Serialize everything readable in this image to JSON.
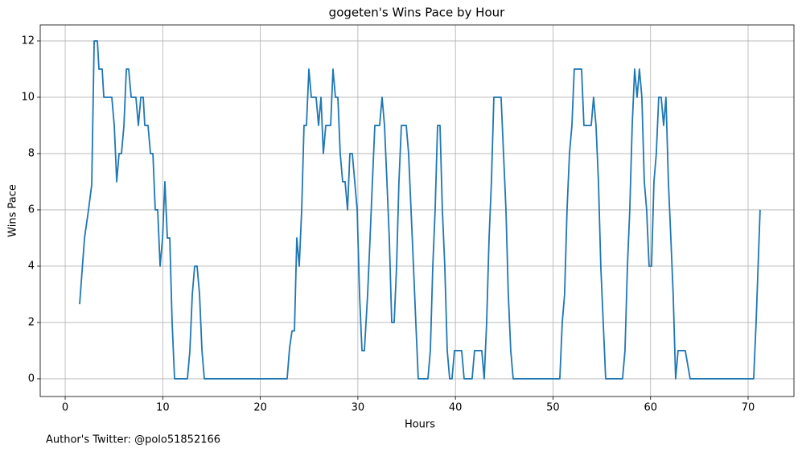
{
  "chart_data": {
    "type": "line",
    "title": "gogeten's Wins Pace by Hour",
    "xlabel": "Hours",
    "ylabel": "Wins Pace",
    "footer": "Author's Twitter: @polo51852166",
    "grid": true,
    "xlim": [
      -2.56,
      74.7
    ],
    "ylim": [
      -0.63,
      12.57
    ],
    "xticks": [
      0,
      10,
      20,
      30,
      40,
      50,
      60,
      70
    ],
    "yticks": [
      0,
      2,
      4,
      6,
      8,
      10,
      12
    ],
    "series": [
      {
        "name": "Wins Pace",
        "color": "#1f77b4",
        "x": [
          1.48,
          1.98,
          2.39,
          2.72,
          2.97,
          3.3,
          3.46,
          3.79,
          3.96,
          4.78,
          5.03,
          5.28,
          5.52,
          5.77,
          6.02,
          6.27,
          6.51,
          6.76,
          7.25,
          7.5,
          7.75,
          8.0,
          8.16,
          8.49,
          8.74,
          8.99,
          9.23,
          9.48,
          9.73,
          9.98,
          10.22,
          10.47,
          10.72,
          10.96,
          11.21,
          12.53,
          12.78,
          13.03,
          13.27,
          13.52,
          13.77,
          14.02,
          14.26,
          22.75,
          23.0,
          23.25,
          23.5,
          23.74,
          23.99,
          24.24,
          24.48,
          24.73,
          24.98,
          25.23,
          25.72,
          25.97,
          26.22,
          26.46,
          26.71,
          27.21,
          27.45,
          27.7,
          27.95,
          28.19,
          28.44,
          28.69,
          28.94,
          29.18,
          29.43,
          29.93,
          30.17,
          30.42,
          30.67,
          31.0,
          31.25,
          31.49,
          31.74,
          32.23,
          32.48,
          32.73,
          32.98,
          33.22,
          33.47,
          33.72,
          33.97,
          34.21,
          34.46,
          34.96,
          35.2,
          35.45,
          35.7,
          35.94,
          36.19,
          37.18,
          37.43,
          37.68,
          37.92,
          38.17,
          38.42,
          38.66,
          38.91,
          39.16,
          39.41,
          39.65,
          39.9,
          40.64,
          40.89,
          41.71,
          41.96,
          42.7,
          42.95,
          43.2,
          43.45,
          43.69,
          43.94,
          44.68,
          44.93,
          45.18,
          45.42,
          45.67,
          45.92,
          50.7,
          50.95,
          51.19,
          51.44,
          51.69,
          51.94,
          52.18,
          52.93,
          53.17,
          53.92,
          54.16,
          54.41,
          54.66,
          54.9,
          55.15,
          55.4,
          57.13,
          57.38,
          57.63,
          57.87,
          58.12,
          58.37,
          58.62,
          58.86,
          59.11,
          59.36,
          59.6,
          59.85,
          60.1,
          60.35,
          60.59,
          60.84,
          61.09,
          61.34,
          61.58,
          61.83,
          62.08,
          62.32,
          62.57,
          62.82,
          63.56,
          64.06,
          70.57,
          70.82,
          71.23
        ],
        "values": [
          2.65,
          5,
          6,
          6.9,
          12,
          12,
          11,
          11,
          10,
          10,
          9,
          7,
          8,
          8,
          9,
          11,
          11,
          10,
          10,
          9,
          10,
          10,
          9,
          9,
          8,
          8,
          6,
          6,
          4,
          5,
          7,
          5,
          5,
          2,
          0,
          0,
          1,
          3,
          4,
          4,
          3,
          1,
          0,
          0,
          1.1,
          1.7,
          1.7,
          5,
          4,
          6,
          9,
          9,
          11,
          10,
          10,
          9,
          10,
          8,
          9,
          9,
          11,
          10,
          10,
          8,
          7,
          7,
          6,
          8,
          8,
          6,
          3,
          1,
          1,
          3,
          5,
          7,
          9,
          9,
          10,
          9,
          7,
          5,
          2,
          2,
          4,
          7,
          9,
          9,
          8,
          6,
          4,
          2,
          0,
          0,
          1,
          4,
          6,
          9,
          9,
          6,
          4,
          1,
          0,
          0,
          1,
          1,
          0,
          0,
          1,
          1,
          0,
          2,
          5,
          7,
          10,
          10,
          8,
          6,
          3,
          1,
          0,
          0,
          2,
          3,
          6,
          8,
          9,
          11,
          11,
          9,
          9,
          10,
          9,
          7,
          4,
          2,
          0,
          0,
          1,
          4,
          6,
          9,
          11,
          10,
          11,
          10,
          7,
          6,
          4,
          4,
          7,
          8,
          10,
          10,
          9,
          10,
          7,
          5,
          3,
          0,
          1,
          1,
          0,
          0,
          2,
          6
        ]
      }
    ]
  }
}
